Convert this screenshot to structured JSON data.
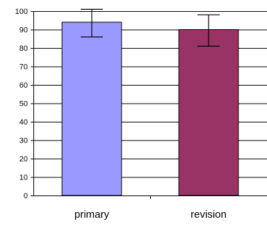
{
  "chart_data": {
    "type": "bar",
    "categories": [
      "primary",
      "revision"
    ],
    "values": [
      94,
      90
    ],
    "error_bars": [
      {
        "low": 86,
        "high": 101
      },
      {
        "low": 81,
        "high": 98
      }
    ],
    "colors": [
      "#9999FF",
      "#993366"
    ],
    "ylim": [
      0,
      100
    ],
    "yticks": [
      "0",
      "10",
      "20",
      "30",
      "40",
      "50",
      "60",
      "70",
      "80",
      "90",
      "100"
    ],
    "grid": true,
    "legend": "none"
  }
}
